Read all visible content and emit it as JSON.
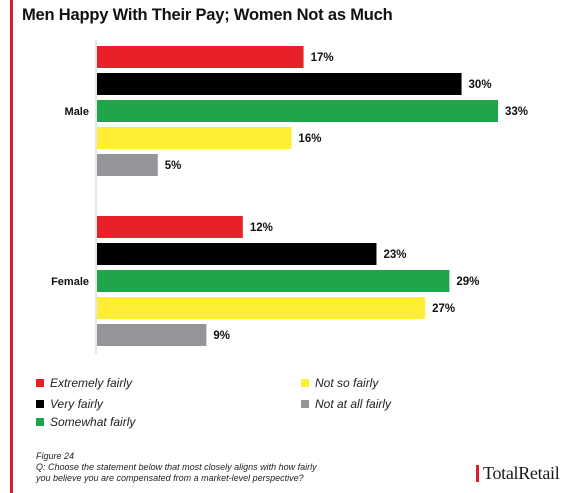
{
  "chart_data": {
    "type": "bar",
    "orientation": "horizontal",
    "title": "Men Happy With Their Pay; Women Not as Much",
    "xlim": [
      0,
      33
    ],
    "grid": false,
    "legend_position": "bottom-left",
    "groups": [
      "Male",
      "Female"
    ],
    "series": [
      {
        "name": "Extremely fairly",
        "color": "#e8202a",
        "values": [
          17,
          12
        ]
      },
      {
        "name": "Very fairly",
        "color": "#000000",
        "values": [
          30,
          23
        ]
      },
      {
        "name": "Somewhat fairly",
        "color": "#1fa64a",
        "values": [
          33,
          29
        ]
      },
      {
        "name": "Not so fairly",
        "color": "#ffee33",
        "values": [
          16,
          27
        ]
      },
      {
        "name": "Not at all fairly",
        "color": "#939598",
        "values": [
          5,
          9
        ]
      }
    ],
    "value_suffix": "%"
  },
  "footnote": {
    "figure": "Figure 24",
    "question_line1": "Q: Choose the statement below that most closely aligns with how fairly",
    "question_line2": "you believe you are compensated from a market-level perspective?"
  },
  "brand": {
    "name": "TotalRetail"
  }
}
